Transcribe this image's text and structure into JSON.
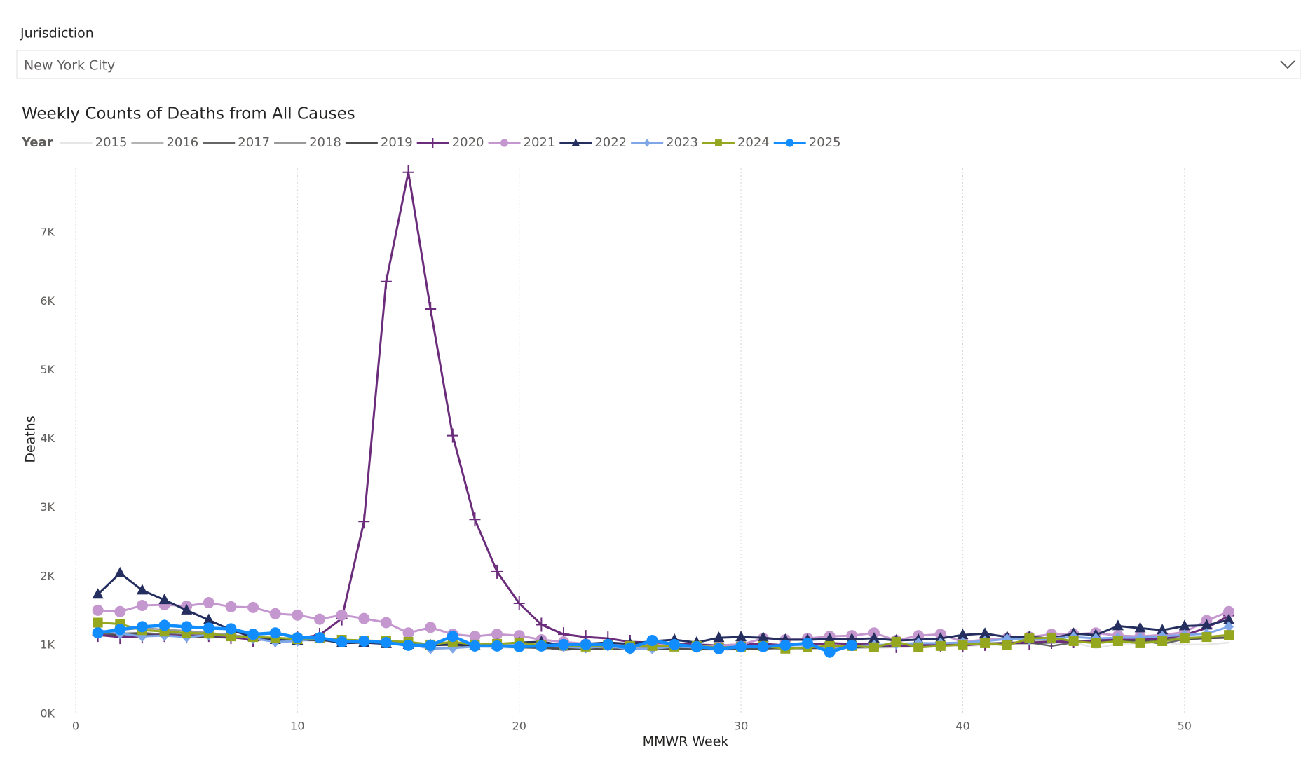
{
  "filter": {
    "label": "Jurisdiction",
    "value": "New York City"
  },
  "chart_data": {
    "type": "line",
    "title": "Weekly Counts of Deaths from All Causes",
    "legend_title": "Year",
    "x_label": "MMWR Week",
    "y_label": "Deaths",
    "x": [
      1,
      2,
      3,
      4,
      5,
      6,
      7,
      8,
      9,
      10,
      11,
      12,
      13,
      14,
      15,
      16,
      17,
      18,
      19,
      20,
      21,
      22,
      23,
      24,
      25,
      26,
      27,
      28,
      29,
      30,
      31,
      32,
      33,
      34,
      35,
      36,
      37,
      38,
      39,
      40,
      41,
      42,
      43,
      44,
      45,
      46,
      47,
      48,
      49,
      50,
      51,
      52
    ],
    "xlim": [
      0,
      55
    ],
    "xticks": [
      0,
      10,
      20,
      30,
      40,
      50
    ],
    "ylim": [
      0,
      8000
    ],
    "yticks": [
      {
        "value": 0,
        "label": "0K"
      },
      {
        "value": 1000,
        "label": "1K"
      },
      {
        "value": 2000,
        "label": "2K"
      },
      {
        "value": 3000,
        "label": "3K"
      },
      {
        "value": 4000,
        "label": "4K"
      },
      {
        "value": 5000,
        "label": "5K"
      },
      {
        "value": 6000,
        "label": "6K"
      },
      {
        "value": 7000,
        "label": "7K"
      }
    ],
    "grid": "x",
    "series": [
      {
        "name": "2015",
        "color": "#e6e6e6",
        "marker": "none",
        "values": [
          1200,
          1190,
          1180,
          1150,
          1130,
          1120,
          1100,
          1090,
          1080,
          1070,
          1060,
          1050,
          1040,
          1030,
          1010,
          1000,
          990,
          980,
          970,
          960,
          960,
          950,
          950,
          940,
          940,
          950,
          950,
          940,
          930,
          940,
          950,
          950,
          940,
          950,
          960,
          960,
          970,
          980,
          990,
          990,
          1000,
          1010,
          1020,
          1030,
          1040,
          960,
          1020,
          1030,
          1040,
          1010,
          1010,
          1040
        ]
      },
      {
        "name": "2016",
        "color": "#b3b3b3",
        "marker": "none",
        "values": [
          1150,
          1140,
          1160,
          1170,
          1150,
          1130,
          1120,
          1110,
          1100,
          1090,
          1080,
          1070,
          1060,
          1040,
          1030,
          1020,
          1000,
          990,
          980,
          970,
          960,
          950,
          950,
          950,
          940,
          940,
          950,
          940,
          940,
          950,
          950,
          960,
          950,
          960,
          960,
          970,
          980,
          990,
          1000,
          1010,
          1010,
          1020,
          1030,
          1040,
          1050,
          1060,
          1060,
          1070,
          1080,
          1090,
          1100,
          1110
        ]
      },
      {
        "name": "2017",
        "color": "#666666",
        "marker": "none",
        "values": [
          1160,
          1170,
          1180,
          1160,
          1150,
          1140,
          1130,
          1120,
          1100,
          1090,
          1080,
          1070,
          1060,
          1050,
          1040,
          1020,
          1010,
          1000,
          990,
          980,
          970,
          930,
          960,
          960,
          950,
          950,
          960,
          950,
          940,
          950,
          960,
          950,
          960,
          960,
          970,
          980,
          990,
          1000,
          1000,
          1010,
          1020,
          1030,
          1040,
          990,
          1040,
          1050,
          1060,
          1070,
          1020,
          1090,
          1100,
          1120
        ]
      },
      {
        "name": "2018",
        "color": "#999999",
        "marker": "none",
        "values": [
          1180,
          1220,
          1250,
          1230,
          1210,
          1180,
          1150,
          1120,
          1100,
          1090,
          1080,
          1060,
          1050,
          1040,
          1030,
          1020,
          1010,
          1000,
          990,
          980,
          970,
          960,
          960,
          950,
          950,
          960,
          960,
          950,
          950,
          960,
          960,
          970,
          960,
          970,
          980,
          990,
          1000,
          1000,
          1010,
          1020,
          1030,
          1040,
          1050,
          1060,
          1060,
          1070,
          1080,
          1090,
          1100,
          1110,
          1120,
          1130
        ]
      },
      {
        "name": "2019",
        "color": "#4d4d4d",
        "marker": "none",
        "values": [
          1140,
          1150,
          1160,
          1140,
          1130,
          1120,
          1110,
          1100,
          1090,
          1080,
          1070,
          1060,
          1050,
          1040,
          1030,
          1020,
          1000,
          990,
          980,
          970,
          960,
          950,
          950,
          940,
          940,
          950,
          950,
          940,
          940,
          950,
          950,
          960,
          960,
          960,
          970,
          980,
          980,
          990,
          1000,
          1010,
          1020,
          1030,
          1030,
          1040,
          1050,
          1060,
          1060,
          1070,
          1080,
          1090,
          1100,
          1110
        ]
      },
      {
        "name": "2020",
        "color": "#6b2d7b",
        "marker": "cross",
        "values": [
          1150,
          1120,
          1130,
          1150,
          1130,
          1150,
          1120,
          1080,
          1080,
          1100,
          1150,
          1390,
          2800,
          6290,
          7880,
          5890,
          4050,
          2830,
          2070,
          1610,
          1300,
          1160,
          1120,
          1100,
          1050,
          1040,
          1020,
          1010,
          1000,
          1010,
          1020,
          1000,
          1010,
          1030,
          1020,
          1010,
          990,
          1000,
          1010,
          1000,
          1020,
          1030,
          1040,
          1050,
          1060,
          1070,
          1090,
          1080,
          1100,
          1150,
          1250,
          1430
        ]
      },
      {
        "name": "2021",
        "color": "#c597cf",
        "marker": "circle",
        "values": [
          1510,
          1490,
          1580,
          1590,
          1570,
          1620,
          1560,
          1550,
          1460,
          1440,
          1380,
          1440,
          1390,
          1330,
          1180,
          1260,
          1160,
          1130,
          1160,
          1140,
          1080,
          1050,
          1020,
          1010,
          990,
          1010,
          1000,
          990,
          1000,
          1010,
          1100,
          1080,
          1100,
          1130,
          1140,
          1180,
          1070,
          1140,
          1160,
          1050,
          1080,
          1100,
          1120,
          1160,
          1160,
          1180,
          1140,
          1130,
          1150,
          1190,
          1360,
          1490
        ]
      },
      {
        "name": "2022",
        "color": "#252f5f",
        "marker": "triangle",
        "values": [
          1740,
          2050,
          1800,
          1660,
          1510,
          1370,
          1220,
          1120,
          1080,
          1070,
          1090,
          1030,
          1040,
          1020,
          1010,
          1000,
          1010,
          1000,
          1010,
          1040,
          1050,
          1000,
          1020,
          1040,
          1020,
          1060,
          1080,
          1040,
          1110,
          1120,
          1110,
          1080,
          1080,
          1090,
          1090,
          1100,
          1070,
          1080,
          1100,
          1150,
          1170,
          1120,
          1120,
          1100,
          1170,
          1150,
          1280,
          1250,
          1220,
          1280,
          1290,
          1370
        ]
      },
      {
        "name": "2023",
        "color": "#7fa6e6",
        "marker": "diamond",
        "values": [
          1220,
          1170,
          1130,
          1140,
          1120,
          1150,
          1140,
          1100,
          1050,
          1060,
          1110,
          1060,
          1050,
          1040,
          1020,
          950,
          960,
          980,
          1000,
          1010,
          1000,
          980,
          960,
          990,
          940,
          950,
          980,
          970,
          960,
          990,
          990,
          1000,
          1000,
          960,
          990,
          1000,
          1020,
          1030,
          1030,
          1040,
          1060,
          1090,
          1080,
          1100,
          1120,
          1100,
          1110,
          1110,
          1130,
          1150,
          1170,
          1270
        ]
      },
      {
        "name": "2024",
        "color": "#95a61f",
        "marker": "square",
        "values": [
          1330,
          1310,
          1220,
          1200,
          1180,
          1170,
          1130,
          1120,
          1110,
          1090,
          1100,
          1080,
          1070,
          1060,
          1050,
          1010,
          1050,
          1010,
          1020,
          1040,
          1000,
          1000,
          980,
          1000,
          990,
          990,
          980,
          990,
          970,
          980,
          990,
          950,
          970,
          990,
          990,
          970,
          1050,
          970,
          990,
          1010,
          1030,
          1000,
          1100,
          1110,
          1060,
          1030,
          1060,
          1030,
          1060,
          1100,
          1120,
          1150
        ]
      },
      {
        "name": "2025",
        "color": "#118dff",
        "marker": "circle",
        "values": [
          1180,
          1230,
          1270,
          1290,
          1270,
          1250,
          1240,
          1160,
          1180,
          1110,
          1110,
          1050,
          1060,
          1040,
          1000,
          1000,
          1130,
          990,
          990,
          980,
          990,
          1010,
          1010,
          1010,
          960,
          1070,
          1010,
          980,
          950,
          980,
          980,
          1000,
          1030,
          900,
          1000,
          null,
          null,
          null,
          null,
          null,
          null,
          null,
          null,
          null,
          null,
          null,
          null,
          null,
          null,
          null,
          null,
          null
        ]
      }
    ]
  }
}
